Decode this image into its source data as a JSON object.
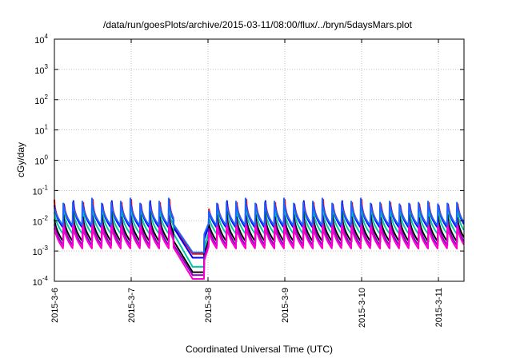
{
  "chart_data": {
    "type": "line",
    "title": "/data/run/goesPlots/archive/2015-03-11/08:00/flux/../bryn/5daysMars.plot",
    "xlabel": "Coordinated Universal Time (UTC)",
    "ylabel": "cGy/day",
    "yscale": "log",
    "ylim": [
      0.0001,
      10000
    ],
    "xlim": [
      "2015-03-06 00:00",
      "2015-03-11 08:00"
    ],
    "grid": true,
    "y_ticks": [
      {
        "base": "10",
        "exp": "-4",
        "value": 0.0001
      },
      {
        "base": "10",
        "exp": "-3",
        "value": 0.001
      },
      {
        "base": "10",
        "exp": "-2",
        "value": 0.01
      },
      {
        "base": "10",
        "exp": "-1",
        "value": 0.1
      },
      {
        "base": "10",
        "exp": "0",
        "value": 1
      },
      {
        "base": "10",
        "exp": "1",
        "value": 10
      },
      {
        "base": "10",
        "exp": "2",
        "value": 100
      },
      {
        "base": "10",
        "exp": "3",
        "value": 1000
      },
      {
        "base": "10",
        "exp": "4",
        "value": 10000
      }
    ],
    "x_ticks": [
      "2015-3-6",
      "2015-3-7",
      "2015-3-8",
      "2015-3-9",
      "2015-3-10",
      "2015-3-11"
    ],
    "x_tick_days": [
      0,
      1,
      2,
      3,
      4,
      5
    ],
    "x_range_days": [
      0,
      5.333
    ],
    "pulse_period_hours": 3,
    "series": [
      {
        "color": "#ff0000",
        "peak": 0.05,
        "floor": 0.006,
        "dip_min": 0.0008
      },
      {
        "color": "#0000ff",
        "peak": 0.045,
        "floor": 0.0055,
        "dip_min": 0.0006
      },
      {
        "color": "#00c8a0",
        "peak": 0.03,
        "floor": 0.0035,
        "dip_min": 0.0003
      },
      {
        "color": "#000000",
        "peak": 0.02,
        "floor": 0.002,
        "dip_min": 0.0002
      },
      {
        "color": "#8b00c8",
        "peak": 0.015,
        "floor": 0.0015,
        "dip_min": 0.00016
      },
      {
        "color": "#ff00cc",
        "peak": 0.012,
        "floor": 0.0012,
        "dip_min": 0.00012
      },
      {
        "color": "#1e64ff",
        "peak": 0.055,
        "floor": 0.007,
        "dip_min": 0.0009
      }
    ],
    "dip_start_day": 1.55,
    "dip_end_day": 1.95
  }
}
